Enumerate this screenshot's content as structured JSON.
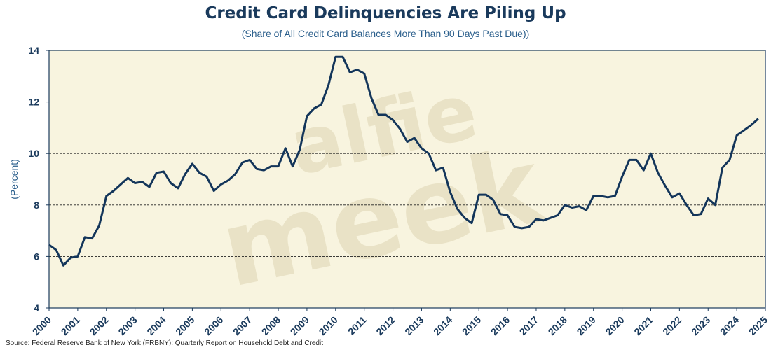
{
  "chart_data": {
    "type": "line",
    "title": "Credit Card Delinquencies Are Piling Up",
    "subtitle": "(Share of All Credit Card Balances More Than 90 Days Past Due))",
    "xlabel": "",
    "ylabel": "(Percent)",
    "ylim": [
      4,
      14
    ],
    "yticks": [
      "4",
      "6",
      "8",
      "10",
      "12",
      "14"
    ],
    "xlim": [
      2000,
      2025
    ],
    "xticks": [
      "2000",
      "2001",
      "2002",
      "2003",
      "2004",
      "2005",
      "2006",
      "2007",
      "2008",
      "2009",
      "2010",
      "2011",
      "2012",
      "2013",
      "2014",
      "2015",
      "2016",
      "2017",
      "2018",
      "2019",
      "2020",
      "2021",
      "2022",
      "2023",
      "2024",
      "2025"
    ],
    "grid": "horizontal dashed",
    "watermark": "alfie meek",
    "source": "Source: Federal Reserve Bank of New York (FRBNY): Quarterly Report on Household Debt and Credit",
    "colors": {
      "line": "#13355a",
      "plot_bg": "#f8f4df",
      "axis": "#1a3a5c",
      "watermark": "#e9e2c6"
    },
    "series": [
      {
        "x": [
          2000.0,
          2000.25,
          2000.5,
          2000.75,
          2001.0,
          2001.25,
          2001.5,
          2001.75,
          2002.0,
          2002.25,
          2002.5,
          2002.75,
          2003.0,
          2003.25,
          2003.5,
          2003.75,
          2004.0,
          2004.25,
          2004.5,
          2004.75,
          2005.0,
          2005.25,
          2005.5,
          2005.75,
          2006.0,
          2006.25,
          2006.5,
          2006.75,
          2007.0,
          2007.25,
          2007.5,
          2007.75,
          2008.0,
          2008.25,
          2008.5,
          2008.75,
          2009.0,
          2009.25,
          2009.5,
          2009.75,
          2010.0,
          2010.25,
          2010.5,
          2010.75,
          2011.0,
          2011.25,
          2011.5,
          2011.75,
          2012.0,
          2012.25,
          2012.5,
          2012.75,
          2013.0,
          2013.25,
          2013.5,
          2013.75,
          2014.0,
          2014.25,
          2014.5,
          2014.75,
          2015.0,
          2015.25,
          2015.5,
          2015.75,
          2016.0,
          2016.25,
          2016.5,
          2016.75,
          2017.0,
          2017.25,
          2017.5,
          2017.75,
          2018.0,
          2018.25,
          2018.5,
          2018.75,
          2019.0,
          2019.25,
          2019.5,
          2019.75,
          2020.0,
          2020.25,
          2020.5,
          2020.75,
          2021.0,
          2021.25,
          2021.5,
          2021.75,
          2022.0,
          2022.25,
          2022.5,
          2022.75,
          2023.0,
          2023.25,
          2023.5,
          2023.75,
          2024.0,
          2024.25,
          2024.5,
          2024.75
        ],
        "values": [
          6.45,
          6.25,
          5.65,
          5.95,
          6.0,
          6.75,
          6.7,
          7.2,
          8.35,
          8.55,
          8.8,
          9.05,
          8.85,
          8.9,
          8.7,
          9.25,
          9.3,
          8.85,
          8.65,
          9.2,
          9.6,
          9.25,
          9.1,
          8.55,
          8.8,
          8.95,
          9.2,
          9.65,
          9.75,
          9.4,
          9.35,
          9.5,
          9.5,
          10.2,
          9.5,
          10.15,
          11.45,
          11.75,
          11.9,
          12.65,
          13.75,
          13.75,
          13.15,
          13.25,
          13.1,
          12.15,
          11.5,
          11.5,
          11.3,
          10.95,
          10.45,
          10.6,
          10.2,
          10.0,
          9.35,
          9.45,
          8.5,
          7.85,
          7.5,
          7.3,
          8.4,
          8.4,
          8.2,
          7.65,
          7.6,
          7.15,
          7.1,
          7.15,
          7.45,
          7.4,
          7.5,
          7.6,
          8.0,
          7.9,
          7.95,
          7.8,
          8.35,
          8.35,
          8.3,
          8.35,
          9.1,
          9.75,
          9.75,
          9.35,
          10.0,
          9.25,
          8.75,
          8.3,
          8.45,
          8.0,
          7.6,
          7.65,
          8.25,
          8.0,
          9.45,
          9.75,
          10.7,
          10.9,
          11.1,
          11.35
        ]
      }
    ]
  }
}
